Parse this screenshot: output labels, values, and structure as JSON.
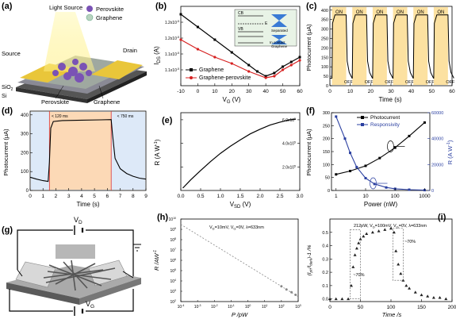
{
  "panels": {
    "a": {
      "label": "(a)",
      "light_source": "Light Source",
      "legend": [
        "Perovskite",
        "Graphene"
      ],
      "source": "Source",
      "drain": "Drain",
      "sio2": "SiO",
      "sio2_sub": "2",
      "si": "Si",
      "perovskite": "Perovskite",
      "graphene": "Graphene",
      "colors": {
        "electrode": "#e9c63a",
        "perovskite": "#7a52b5",
        "substrate": "#4a4a4a",
        "beam": "#fff6a8"
      }
    },
    "b": {
      "label": "(b)",
      "ylabel": "I",
      "ylabel_sub": "DS",
      "ylabel_unit": " (A)",
      "xlabel": "V",
      "xlabel_sub": "G",
      "xlabel_unit": " (V)",
      "inset": {
        "top_label": "Separated",
        "bottom_label": "In contact",
        "bottom_sub": "Graphene",
        "cb": "CB",
        "vb": "VB",
        "ef": "E",
        "ef_sub": "F"
      },
      "chart_data": {
        "type": "line",
        "xlim": [
          -10,
          60
        ],
        "ylim": [
          1.05e-05,
          1.3e-05
        ],
        "xticks": [
          "-10",
          "0",
          "10",
          "20",
          "30",
          "40",
          "50",
          "60"
        ],
        "yticks": [
          "1.1x10",
          "1.1x10",
          "1.2x10",
          "1.2x10"
        ],
        "ytick_exp": "-5",
        "series": [
          {
            "name": "Graphene",
            "color": "#000000",
            "x": [
              -10,
              0,
              10,
              20,
              30,
              35,
              40,
              45,
              50,
              55,
              60
            ],
            "y": [
              1.275e-05,
              1.235e-05,
              1.195e-05,
              1.155e-05,
              1.115e-05,
              1.095e-05,
              1.08e-05,
              1.09e-05,
              1.11e-05,
              1.125e-05,
              1.14e-05
            ]
          },
          {
            "name": "Graphene-perovskite",
            "color": "#d62020",
            "x": [
              -10,
              0,
              10,
              20,
              30,
              40,
              45,
              50,
              55,
              60
            ],
            "y": [
              1.195e-05,
              1.165e-05,
              1.14e-05,
              1.12e-05,
              1.095e-05,
              1.075e-05,
              1.08e-05,
              1.1e-05,
              1.115e-05,
              1.13e-05
            ]
          }
        ]
      }
    },
    "c": {
      "label": "(c)",
      "ylabel": "Photocurrent  (μA)",
      "xlabel": "Time  (s)",
      "on": "ON",
      "off": "OFF",
      "chart_data": {
        "type": "line",
        "xlim": [
          0,
          60
        ],
        "ylim": [
          0,
          420
        ],
        "xticks": [
          "0",
          "10",
          "20",
          "30",
          "40",
          "50",
          "60"
        ],
        "yticks": [
          "0",
          "50",
          "100",
          "150",
          "200",
          "250",
          "300",
          "350",
          "400"
        ],
        "on_intervals": [
          [
            1,
            8
          ],
          [
            11,
            18
          ],
          [
            21,
            28
          ],
          [
            31,
            38
          ],
          [
            41,
            48
          ],
          [
            51,
            58
          ]
        ],
        "on_level": 375,
        "off_level": 40
      }
    },
    "d": {
      "label": "(d)",
      "ylabel": "Photocurrent  (μA)",
      "xlabel": "Time  (s)",
      "rise": "< 120 ms",
      "fall": "< 750 ms",
      "chart_data": {
        "type": "line",
        "xlim": [
          0,
          9
        ],
        "ylim": [
          0,
          420
        ],
        "xticks": [
          "0",
          "1",
          "2",
          "3",
          "4",
          "5",
          "6",
          "7",
          "8",
          "9"
        ],
        "yticks": [
          "0",
          "100",
          "200",
          "300",
          "400"
        ],
        "on_interval": [
          1.5,
          6.3
        ],
        "x": [
          0,
          0.5,
          1.0,
          1.4,
          1.5,
          1.6,
          1.8,
          2.5,
          4.0,
          5.5,
          6.3,
          6.4,
          6.6,
          7.0,
          7.5,
          8.0,
          8.5,
          9.0
        ],
        "y": [
          70,
          60,
          52,
          48,
          150,
          330,
          365,
          370,
          372,
          374,
          375,
          300,
          170,
          115,
          90,
          75,
          65,
          60
        ]
      }
    },
    "e": {
      "label": "(e)",
      "ylabel": "R",
      "ylabel_unit": " (A W",
      "ylabel_sup": "-1",
      "ylabel_end": ")",
      "xlabel": "V",
      "xlabel_sub": "SD",
      "xlabel_unit": "  (V)",
      "chart_data": {
        "type": "line",
        "xlim": [
          0,
          3
        ],
        "ylim": [
          0,
          660000.0
        ],
        "xticks": [
          "0.0",
          "0.5",
          "1.0",
          "1.5",
          "2.0",
          "2.5",
          "3.0"
        ],
        "yticks": [
          "2.0x10",
          "4.0x10",
          "6.0x10"
        ],
        "ytick_exp": "5",
        "x": [
          0.05,
          0.25,
          0.5,
          0.75,
          1.0,
          1.25,
          1.5,
          1.75,
          2.0,
          2.25,
          2.5,
          2.75,
          2.9
        ],
        "y": [
          20000,
          90000,
          170000,
          245000,
          315000,
          375000,
          430000,
          480000,
          520000,
          555000,
          580000,
          600000,
          605000
        ]
      }
    },
    "f": {
      "label": "(f)",
      "ylabel_left": "Photocurrent  (μA)",
      "ylabel_right": "R  (A W",
      "ylabel_right_sup": "-1",
      "ylabel_right_end": ")",
      "xlabel": "Power  (nW)",
      "chart_data": {
        "type": "line",
        "xscale": "log",
        "xlim": [
          0.7,
          1500
        ],
        "ylim_left": [
          0,
          300
        ],
        "ylim_right": [
          0,
          60000
        ],
        "xticks": [
          "1",
          "10",
          "100",
          "1000"
        ],
        "yticks_left": [
          "0",
          "50",
          "100",
          "150",
          "200",
          "250",
          "300"
        ],
        "yticks_right": [
          "0",
          "20000",
          "40000",
          "60000"
        ],
        "series": [
          {
            "name": "Photocurrent",
            "color": "#000000",
            "axis": "left",
            "x": [
              1,
              3,
              10,
              30,
              100,
              300,
              1000
            ],
            "y": [
              62,
              75,
              95,
              125,
              165,
              210,
              262
            ]
          },
          {
            "name": "Responsivity",
            "color": "#2a3fa0",
            "axis": "right",
            "x": [
              1,
              2,
              3,
              5,
              10,
              20,
              50,
              100,
              300,
              1000
            ],
            "y": [
              57000,
              40000,
              29000,
              18000,
              9500,
              5000,
              2300,
              1300,
              600,
              250
            ]
          }
        ]
      }
    },
    "g": {
      "label": "(g)",
      "vd": "V",
      "vd_sub": "D",
      "vg": "V",
      "vg_sub": "G"
    },
    "h": {
      "label": "(h)",
      "annotation": "V",
      "annotation_full": "V_D=10mV, V_G=0V, λ=633nm",
      "ylabel": "R /AW",
      "ylabel_sup": "-1",
      "xlabel": "P /pW",
      "chart_data": {
        "type": "scatter",
        "xscale": "log",
        "yscale": "log",
        "xlim": [
          0.0001,
          1000.0
        ],
        "ylim": [
          100.0,
          10000000000.0
        ],
        "xtick_exps": [
          "-4",
          "-3",
          "-2",
          "-1",
          "0",
          "1",
          "2",
          "3"
        ],
        "ytick_exps": [
          "2",
          "3",
          "4",
          "5",
          "6",
          "7",
          "8",
          "9",
          "10"
        ],
        "fit_x": [
          0.0001,
          1000.0
        ],
        "fit_y": [
          3000000000.0,
          300.0
        ],
        "x": [
          100,
          200,
          400,
          700
        ],
        "y": [
          3000,
          1500,
          800,
          450
        ]
      }
    },
    "i": {
      "label": "(i)",
      "annotation": "212pW, V_D=100mV, V_G=0V, λ=633nm",
      "ylabel": "(I",
      "ylabel_full": "(I_ph/I_dark)-1 /%",
      "xlabel": "Time /s",
      "rise": "~70%",
      "fall": "~70%",
      "chart_data": {
        "type": "scatter",
        "xlim": [
          0,
          200
        ],
        "ylim": [
          -0.02,
          0.6
        ],
        "xticks": [
          "0",
          "50",
          "100",
          "150",
          "200"
        ],
        "yticks": [
          "0.0",
          "0.1",
          "0.2",
          "0.3",
          "0.4",
          "0.5"
        ],
        "x": [
          0,
          10,
          20,
          30,
          35,
          38,
          41,
          44,
          47,
          50,
          55,
          60,
          70,
          80,
          90,
          100,
          105,
          108,
          112,
          116,
          120,
          125,
          130,
          140,
          150,
          160,
          170,
          180,
          190
        ],
        "y": [
          0.0,
          0.0,
          0.0,
          0.0,
          0.1,
          0.24,
          0.33,
          0.38,
          0.42,
          0.45,
          0.47,
          0.49,
          0.5,
          0.51,
          0.52,
          0.53,
          0.5,
          0.36,
          0.26,
          0.19,
          0.14,
          0.1,
          0.08,
          0.05,
          0.03,
          0.02,
          0.01,
          0.01,
          0.0
        ]
      }
    }
  }
}
